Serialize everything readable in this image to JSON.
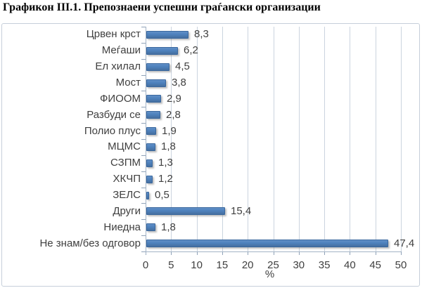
{
  "title": "Графикон III.1. Препознаени успешни граѓански организации",
  "colors": {
    "bar_fill": "#4E81BD",
    "bar_border": "#39679E",
    "gridline": "#CBD4DF",
    "axis_line": "#A3B3C6",
    "label_text": "#3F3F3F",
    "title_text": "#000000",
    "chart_border": "#C6CFDA",
    "background": "#FFFFFF"
  },
  "chart_data": {
    "type": "bar",
    "orientation": "horizontal",
    "title": "Графикон III.1. Препознаени успешни граѓански организации",
    "categories": [
      "Црвен крст",
      "Меѓаши",
      "Ел хилал",
      "Мост",
      "ФИООМ",
      "Разбуди се",
      "Полио плус",
      "МЦМС",
      "СЗПМ",
      "ХКЧП",
      "ЗЕЛС",
      "Други",
      "Ниедна",
      "Не знам/без одговор"
    ],
    "values": [
      8.3,
      6.2,
      4.5,
      3.8,
      2.9,
      2.8,
      1.9,
      1.8,
      1.3,
      1.2,
      0.5,
      15.4,
      1.8,
      47.4
    ],
    "value_labels": [
      "8,3",
      "6,2",
      "4,5",
      "3,8",
      "2,9",
      "2,8",
      "1,9",
      "1,8",
      "1,3",
      "1,2",
      "0,5",
      "15,4",
      "1,8",
      "47,4"
    ],
    "xlabel": "%",
    "ylabel": "",
    "xlim": [
      0,
      50
    ],
    "xticks": [
      0,
      5,
      10,
      15,
      20,
      25,
      30,
      35,
      40,
      45,
      50
    ],
    "xtick_labels": [
      "0",
      "5",
      "10",
      "15",
      "20",
      "25",
      "30",
      "35",
      "40",
      "45",
      "50"
    ],
    "grid": true,
    "legend": false
  }
}
